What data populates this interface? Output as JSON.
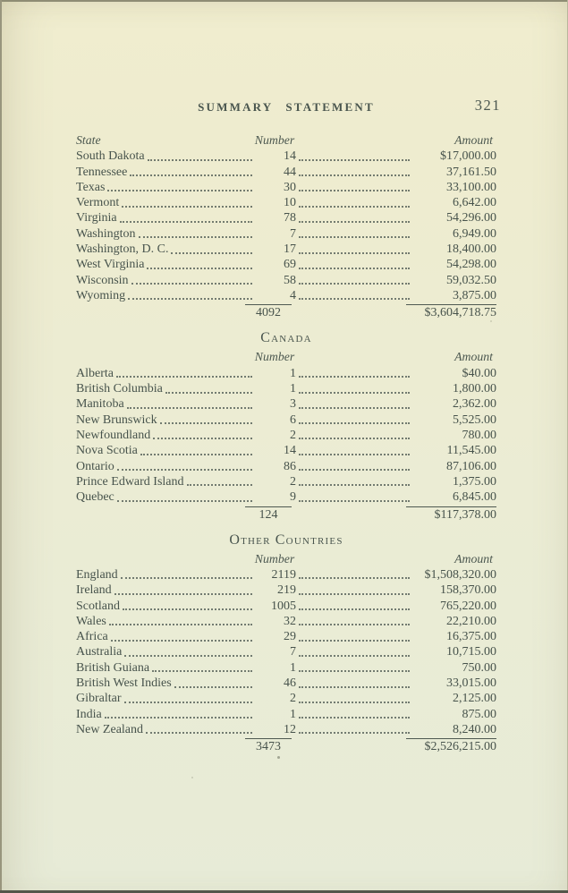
{
  "page": {
    "running_head": "SUMMARY STATEMENT",
    "page_number": "321"
  },
  "columns": {
    "state": "State",
    "number": "Number",
    "amount": "Amount"
  },
  "sections": [
    {
      "heading": "",
      "rows": [
        {
          "name": "South Dakota",
          "number": "14",
          "amount": "$17,000.00"
        },
        {
          "name": "Tennessee",
          "number": "44",
          "amount": "37,161.50"
        },
        {
          "name": "Texas",
          "number": "30",
          "amount": "33,100.00"
        },
        {
          "name": "Vermont",
          "number": "10",
          "amount": "6,642.00"
        },
        {
          "name": "Virginia",
          "number": "78",
          "amount": "54,296.00"
        },
        {
          "name": "Washington",
          "number": "7",
          "amount": "6,949.00"
        },
        {
          "name": "Washington, D. C.",
          "number": "17",
          "amount": "18,400.00"
        },
        {
          "name": "West Virginia",
          "number": "69",
          "amount": "54,298.00"
        },
        {
          "name": "Wisconsin",
          "number": "58",
          "amount": "59,032.50"
        },
        {
          "name": "Wyoming",
          "number": "4",
          "amount": "3,875.00"
        }
      ],
      "total_number": "4092",
      "total_amount": "$3,604,718.75"
    },
    {
      "heading": "Canada",
      "rows": [
        {
          "name": "Alberta",
          "number": "1",
          "amount": "$40.00"
        },
        {
          "name": "British Columbia",
          "number": "1",
          "amount": "1,800.00"
        },
        {
          "name": "Manitoba",
          "number": "3",
          "amount": "2,362.00"
        },
        {
          "name": "New Brunswick",
          "number": "6",
          "amount": "5,525.00"
        },
        {
          "name": "Newfoundland",
          "number": "2",
          "amount": "780.00"
        },
        {
          "name": "Nova Scotia",
          "number": "14",
          "amount": "11,545.00"
        },
        {
          "name": "Ontario",
          "number": "86",
          "amount": "87,106.00"
        },
        {
          "name": "Prince Edward Island",
          "number": "2",
          "amount": "1,375.00"
        },
        {
          "name": "Quebec",
          "number": "9",
          "amount": "6,845.00"
        }
      ],
      "total_number": "124",
      "total_amount": "$117,378.00"
    },
    {
      "heading": "Other Countries",
      "rows": [
        {
          "name": "England",
          "number": "2119",
          "amount": "$1,508,320.00"
        },
        {
          "name": "Ireland",
          "number": "219",
          "amount": "158,370.00"
        },
        {
          "name": "Scotland",
          "number": "1005",
          "amount": "765,220.00"
        },
        {
          "name": "Wales",
          "number": "32",
          "amount": "22,210.00"
        },
        {
          "name": "Africa",
          "number": "29",
          "amount": "16,375.00"
        },
        {
          "name": "Australia",
          "number": "7",
          "amount": "10,715.00"
        },
        {
          "name": "British Guiana",
          "number": "1",
          "amount": "750.00"
        },
        {
          "name": "British West Indies",
          "number": "46",
          "amount": "33,015.00"
        },
        {
          "name": "Gibraltar",
          "number": "2",
          "amount": "2,125.00"
        },
        {
          "name": "India",
          "number": "1",
          "amount": "875.00"
        },
        {
          "name": "New Zealand",
          "number": "12",
          "amount": "8,240.00"
        }
      ],
      "total_number": "3473",
      "total_amount": "$2,526,215.00"
    }
  ],
  "colors": {
    "paper_top": "#f0edcf",
    "paper_bottom": "#e7ebd7",
    "ink": "#47534c"
  }
}
